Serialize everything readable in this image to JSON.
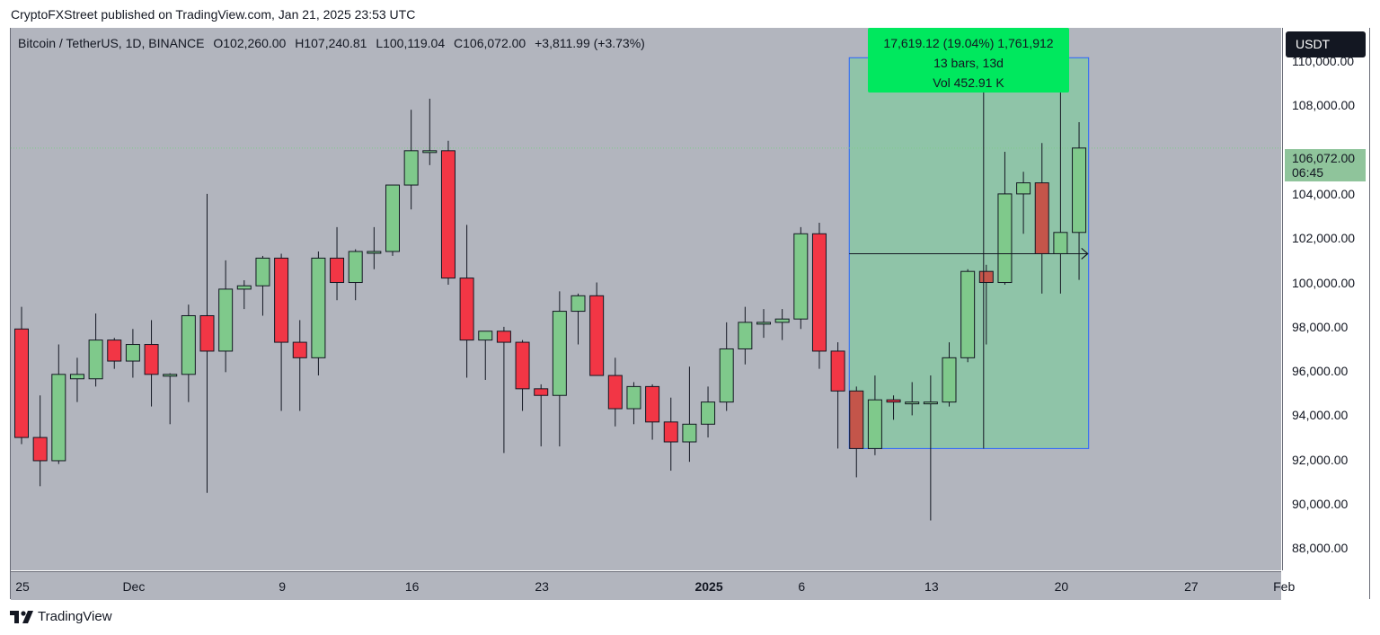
{
  "header": {
    "attribution": "CryptoFXStreet published on TradingView.com, Jan 21, 2025 23:53 UTC"
  },
  "legend": {
    "symbol": "Bitcoin / TetherUS, 1D, BINANCE",
    "open": "O102,260.00",
    "high": "H107,240.81",
    "low": "L100,119.04",
    "close": "C106,072.00",
    "change": "+3,811.99 (+3.73%)"
  },
  "currency_badge": "USDT",
  "last_price": {
    "value": "106,072.00",
    "countdown": "06:45"
  },
  "measure_tooltip": {
    "line1": "17,619.12 (19.04%) 1,761,912",
    "line2": "13 bars, 13d",
    "line3": "Vol 452.91 K"
  },
  "footer": {
    "brand": "TradingView"
  },
  "colors": {
    "up": "#7fc98b",
    "down": "#f23645",
    "neutral": "#c4554a",
    "measure_fill": "#8fc4a8",
    "measure_border": "#2962ff"
  },
  "chart_data": {
    "type": "candlestick",
    "interval": "1D",
    "ylim": [
      87000,
      111500
    ],
    "price_ticks": [
      "88,000.00",
      "90,000.00",
      "92,000.00",
      "94,000.00",
      "96,000.00",
      "98,000.00",
      "100,000.00",
      "102,000.00",
      "104,000.00",
      "106,000.00",
      "108,000.00",
      "110,000.00"
    ],
    "price_tick_values": [
      88000,
      90000,
      92000,
      94000,
      96000,
      98000,
      100000,
      102000,
      104000,
      106000,
      108000,
      110000
    ],
    "time_ticks": [
      {
        "label": "25",
        "day": 0,
        "bold": false
      },
      {
        "label": "Dec",
        "day": 6,
        "bold": false
      },
      {
        "label": "9",
        "day": 14,
        "bold": false
      },
      {
        "label": "16",
        "day": 21,
        "bold": false
      },
      {
        "label": "23",
        "day": 28,
        "bold": false
      },
      {
        "label": "2025",
        "day": 37,
        "bold": true
      },
      {
        "label": "6",
        "day": 42,
        "bold": false
      },
      {
        "label": "13",
        "day": 49,
        "bold": false
      },
      {
        "label": "20",
        "day": 56,
        "bold": false
      },
      {
        "label": "27",
        "day": 63,
        "bold": false
      },
      {
        "label": "Feb",
        "day": 68,
        "bold": false
      }
    ],
    "candles": [
      {
        "o": 97900,
        "h": 98900,
        "l": 92700,
        "c": 93000
      },
      {
        "o": 93000,
        "h": 94900,
        "l": 90800,
        "c": 91950
      },
      {
        "o": 91950,
        "h": 97200,
        "l": 91800,
        "c": 95850
      },
      {
        "o": 95650,
        "h": 96600,
        "l": 94600,
        "c": 95850
      },
      {
        "o": 95650,
        "h": 98600,
        "l": 95300,
        "c": 97400
      },
      {
        "o": 97400,
        "h": 97500,
        "l": 96100,
        "c": 96450
      },
      {
        "o": 96450,
        "h": 97900,
        "l": 95700,
        "c": 97200
      },
      {
        "o": 97200,
        "h": 98300,
        "l": 94400,
        "c": 95850
      },
      {
        "o": 95850,
        "h": 95900,
        "l": 93600,
        "c": 95850
      },
      {
        "o": 95850,
        "h": 99000,
        "l": 94600,
        "c": 98500
      },
      {
        "o": 98500,
        "h": 104000,
        "l": 90500,
        "c": 96900
      },
      {
        "o": 96900,
        "h": 101000,
        "l": 95950,
        "c": 99700
      },
      {
        "o": 99700,
        "h": 100100,
        "l": 98800,
        "c": 99850
      },
      {
        "o": 99850,
        "h": 101200,
        "l": 98500,
        "c": 101100
      },
      {
        "o": 101100,
        "h": 101300,
        "l": 94200,
        "c": 97300
      },
      {
        "o": 97300,
        "h": 98300,
        "l": 94200,
        "c": 96600
      },
      {
        "o": 96600,
        "h": 101400,
        "l": 95800,
        "c": 101100
      },
      {
        "o": 101100,
        "h": 102500,
        "l": 99200,
        "c": 100000
      },
      {
        "o": 100000,
        "h": 101500,
        "l": 99200,
        "c": 101400
      },
      {
        "o": 101400,
        "h": 102500,
        "l": 100600,
        "c": 101400
      },
      {
        "o": 101400,
        "h": 104400,
        "l": 101200,
        "c": 104400
      },
      {
        "o": 104400,
        "h": 107800,
        "l": 103300,
        "c": 105950
      },
      {
        "o": 105950,
        "h": 108300,
        "l": 105300,
        "c": 105950
      },
      {
        "o": 105950,
        "h": 106400,
        "l": 99900,
        "c": 100200
      },
      {
        "o": 100200,
        "h": 102600,
        "l": 95700,
        "c": 97400
      },
      {
        "o": 97400,
        "h": 97800,
        "l": 95600,
        "c": 97800
      },
      {
        "o": 97800,
        "h": 98000,
        "l": 92300,
        "c": 97300
      },
      {
        "o": 97300,
        "h": 97400,
        "l": 94200,
        "c": 95200
      },
      {
        "o": 95200,
        "h": 95400,
        "l": 92600,
        "c": 94900
      },
      {
        "o": 94900,
        "h": 99600,
        "l": 92600,
        "c": 98700
      },
      {
        "o": 98700,
        "h": 99500,
        "l": 97200,
        "c": 99400
      },
      {
        "o": 99400,
        "h": 100000,
        "l": 95800,
        "c": 95800
      },
      {
        "o": 95800,
        "h": 96600,
        "l": 93500,
        "c": 94300
      },
      {
        "o": 94300,
        "h": 95500,
        "l": 93600,
        "c": 95300
      },
      {
        "o": 95300,
        "h": 95400,
        "l": 92900,
        "c": 93700
      },
      {
        "o": 93700,
        "h": 94800,
        "l": 91500,
        "c": 92800
      },
      {
        "o": 92800,
        "h": 96200,
        "l": 91900,
        "c": 93600
      },
      {
        "o": 93600,
        "h": 95300,
        "l": 93000,
        "c": 94600
      },
      {
        "o": 94600,
        "h": 98200,
        "l": 94200,
        "c": 97000
      },
      {
        "o": 97000,
        "h": 98900,
        "l": 96300,
        "c": 98200
      },
      {
        "o": 98200,
        "h": 98800,
        "l": 97500,
        "c": 98200
      },
      {
        "o": 98200,
        "h": 98800,
        "l": 97400,
        "c": 98350
      },
      {
        "o": 98350,
        "h": 102500,
        "l": 97900,
        "c": 102200
      },
      {
        "o": 102200,
        "h": 102700,
        "l": 96100,
        "c": 96900
      },
      {
        "o": 96900,
        "h": 97300,
        "l": 92500,
        "c": 95100
      },
      {
        "o": 95100,
        "h": 95300,
        "l": 91200,
        "c": 92500
      },
      {
        "o": 92500,
        "h": 95800,
        "l": 92200,
        "c": 94700
      },
      {
        "o": 94700,
        "h": 94900,
        "l": 93800,
        "c": 94600
      },
      {
        "o": 94600,
        "h": 95500,
        "l": 94000,
        "c": 94600
      },
      {
        "o": 94600,
        "h": 95800,
        "l": 89250,
        "c": 94600
      },
      {
        "o": 94600,
        "h": 97300,
        "l": 94400,
        "c": 96600
      },
      {
        "o": 96600,
        "h": 100600,
        "l": 96400,
        "c": 100500
      },
      {
        "o": 100500,
        "h": 100800,
        "l": 97200,
        "c": 100000
      },
      {
        "o": 100000,
        "h": 105900,
        "l": 99900,
        "c": 104000
      },
      {
        "o": 104000,
        "h": 105000,
        "l": 102200,
        "c": 104500
      },
      {
        "o": 104500,
        "h": 106300,
        "l": 99500,
        "c": 101300
      },
      {
        "o": 101300,
        "h": 109400,
        "l": 99500,
        "c": 102260
      },
      {
        "o": 102260,
        "h": 107240,
        "l": 100119,
        "c": 106072
      }
    ],
    "neutral_candles": [
      45,
      52,
      55
    ],
    "measure": {
      "from_day": 45,
      "to_day": 58,
      "low": 92500,
      "high": 110150,
      "mid": 101300,
      "crosshair_day": 52
    }
  }
}
